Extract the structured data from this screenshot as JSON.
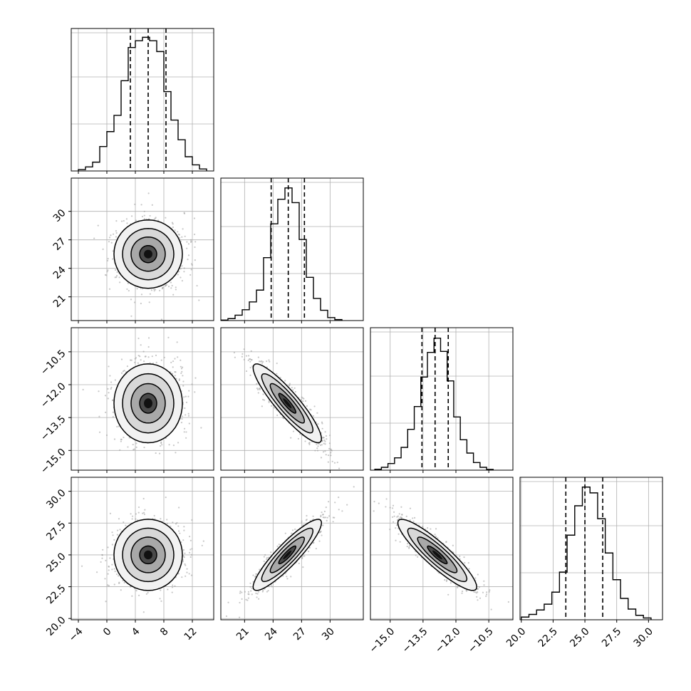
{
  "chart_data": [
    {
      "type": "histogram",
      "row": 0,
      "col": 0,
      "param_index": 0,
      "xlim": [
        -5,
        15
      ],
      "ylim": [
        0,
        0.21
      ],
      "bins_edges": [
        -4,
        -3,
        -2,
        -1,
        0,
        1,
        2,
        3,
        4,
        5,
        6,
        7,
        8,
        9,
        10,
        11,
        12,
        13,
        14
      ],
      "counts": [
        0.002,
        0.006,
        0.013,
        0.036,
        0.058,
        0.082,
        0.133,
        0.182,
        0.192,
        0.197,
        0.192,
        0.176,
        0.117,
        0.075,
        0.046,
        0.021,
        0.009,
        0.003
      ],
      "quantile_lines": [
        3.3,
        5.8,
        8.3
      ],
      "xticks": [],
      "yticks": []
    },
    {
      "type": "histogram",
      "row": 1,
      "col": 1,
      "param_index": 1,
      "xlim": [
        18.5,
        33.5
      ],
      "ylim": [
        0,
        0.29
      ],
      "bins_edges": [
        18.5,
        19.25,
        20,
        20.75,
        21.5,
        22.25,
        23,
        23.75,
        24.5,
        25.25,
        26,
        26.75,
        27.5,
        28.25,
        29,
        29.75,
        30.5,
        31.25
      ],
      "counts": [
        0.001,
        0.004,
        0.011,
        0.022,
        0.038,
        0.062,
        0.128,
        0.197,
        0.247,
        0.27,
        0.24,
        0.165,
        0.088,
        0.045,
        0.021,
        0.006,
        0.002
      ],
      "quantile_lines": [
        23.8,
        25.6,
        27.3
      ],
      "xticks": [],
      "yticks": []
    },
    {
      "type": "histogram",
      "row": 2,
      "col": 2,
      "param_index": 2,
      "xlim": [
        -15.9,
        -9.4
      ],
      "ylim": [
        0,
        0.75
      ],
      "bins_edges": [
        -15.7,
        -15.4,
        -15.1,
        -14.8,
        -14.5,
        -14.2,
        -13.9,
        -13.6,
        -13.3,
        -13.0,
        -12.7,
        -12.4,
        -12.1,
        -11.8,
        -11.5,
        -11.2,
        -10.9,
        -10.6,
        -10.3
      ],
      "counts": [
        0.005,
        0.015,
        0.035,
        0.065,
        0.12,
        0.215,
        0.335,
        0.49,
        0.62,
        0.695,
        0.625,
        0.47,
        0.28,
        0.16,
        0.09,
        0.04,
        0.015,
        0.004
      ],
      "quantile_lines": [
        -13.55,
        -12.95,
        -12.35
      ],
      "xticks": [],
      "yticks": []
    },
    {
      "type": "histogram",
      "row": 3,
      "col": 3,
      "param_index": 3,
      "xlim": [
        19.9,
        31.1
      ],
      "ylim": [
        0,
        0.32
      ],
      "bins_edges": [
        20,
        20.6,
        21.2,
        21.8,
        22.4,
        23,
        23.6,
        24.2,
        24.8,
        25.4,
        26,
        26.6,
        27.2,
        27.8,
        28.4,
        29,
        29.6,
        30.2
      ],
      "counts": [
        0.006,
        0.012,
        0.022,
        0.035,
        0.062,
        0.107,
        0.19,
        0.256,
        0.298,
        0.285,
        0.227,
        0.15,
        0.09,
        0.048,
        0.024,
        0.01,
        0.004
      ],
      "quantile_lines": [
        23.5,
        25.0,
        26.4
      ],
      "xticks": [],
      "yticks": []
    },
    {
      "type": "scatter_contour",
      "row": 1,
      "col": 0,
      "x_param": 0,
      "y_param": 1,
      "xlim": [
        -5,
        15
      ],
      "ylim": [
        18.5,
        33.5
      ],
      "center": [
        5.8,
        25.5
      ],
      "sigma": [
        2.4,
        1.8
      ],
      "rho": 0.0
    },
    {
      "type": "scatter_contour",
      "row": 2,
      "col": 0,
      "x_param": 0,
      "y_param": 2,
      "xlim": [
        -5,
        15
      ],
      "ylim": [
        -15.9,
        -9.4
      ],
      "center": [
        5.8,
        -12.85
      ],
      "sigma": [
        2.4,
        0.9
      ],
      "rho": 0.0
    },
    {
      "type": "scatter_contour",
      "row": 2,
      "col": 1,
      "x_param": 1,
      "y_param": 2,
      "xlim": [
        18.5,
        33.5
      ],
      "ylim": [
        -15.9,
        -9.4
      ],
      "center": [
        25.5,
        -12.85
      ],
      "sigma": [
        1.8,
        0.9
      ],
      "rho": -0.9
    },
    {
      "type": "scatter_contour",
      "row": 3,
      "col": 0,
      "x_param": 0,
      "y_param": 3,
      "xlim": [
        -5,
        15
      ],
      "ylim": [
        19.9,
        31.1
      ],
      "center": [
        5.8,
        25.0
      ],
      "sigma": [
        2.4,
        1.4
      ],
      "rho": 0.0
    },
    {
      "type": "scatter_contour",
      "row": 3,
      "col": 1,
      "x_param": 1,
      "y_param": 3,
      "xlim": [
        18.5,
        33.5
      ],
      "ylim": [
        19.9,
        31.1
      ],
      "center": [
        25.5,
        25.0
      ],
      "sigma": [
        1.8,
        1.4
      ],
      "rho": 0.9
    },
    {
      "type": "scatter_contour",
      "row": 3,
      "col": 2,
      "x_param": 2,
      "y_param": 3,
      "xlim": [
        -15.9,
        -9.4
      ],
      "ylim": [
        19.9,
        31.1
      ],
      "center": [
        -12.85,
        25.0
      ],
      "sigma": [
        0.9,
        1.4
      ],
      "rho": -0.9
    }
  ],
  "axes_ticks": {
    "y_row1": [
      "30",
      "27",
      "24",
      "21"
    ],
    "y_row2": [
      "−10.5",
      "−12.0",
      "−13.5",
      "−15.0"
    ],
    "y_row3": [
      "30.0",
      "27.5",
      "25.0",
      "22.5",
      "20.0"
    ],
    "x_col0": [
      "−4",
      "0",
      "4",
      "8",
      "12"
    ],
    "x_col1": [
      "21",
      "24",
      "27",
      "30"
    ],
    "x_col2": [
      "−15.0",
      "−13.5",
      "−12.0",
      "−10.5"
    ],
    "x_col3": [
      "20.0",
      "22.5",
      "25.0",
      "27.5",
      "30.0"
    ]
  },
  "tick_values": {
    "y_row1": [
      30,
      27,
      24,
      21
    ],
    "y_row2": [
      -10.5,
      -12.0,
      -13.5,
      -15.0
    ],
    "y_row3": [
      30.0,
      27.5,
      25.0,
      22.5,
      20.0
    ],
    "x_col0": [
      -4,
      0,
      4,
      8,
      12
    ],
    "x_col1": [
      21,
      24,
      27,
      30
    ],
    "x_col2": [
      -15.0,
      -13.5,
      -12.0,
      -10.5
    ],
    "x_col3": [
      20.0,
      22.5,
      25.0,
      27.5,
      30.0
    ]
  },
  "grid": true,
  "colors": {
    "line": "#000000",
    "scatter": "#9a9a9a",
    "grid": "#b0b0b0"
  }
}
